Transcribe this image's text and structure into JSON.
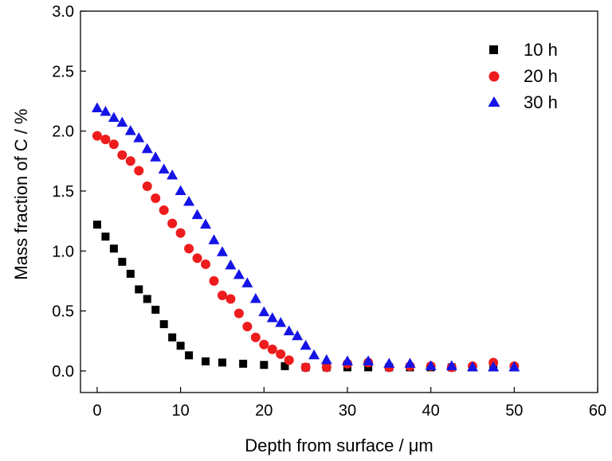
{
  "chart_data": {
    "type": "scatter",
    "title": "",
    "xlabel": "Depth from surface / μm",
    "ylabel": "Mass fraction of C / %",
    "xlim": [
      -2,
      60
    ],
    "ylim": [
      -0.18,
      3.0
    ],
    "xticks": [
      0,
      10,
      20,
      30,
      40,
      50,
      60
    ],
    "yticks": [
      0.0,
      0.5,
      1.0,
      1.5,
      2.0,
      2.5,
      3.0
    ],
    "xtick_labels": [
      "0",
      "10",
      "20",
      "30",
      "40",
      "50",
      "60"
    ],
    "ytick_labels": [
      "0.0",
      "0.5",
      "1.0",
      "1.5",
      "2.0",
      "2.5",
      "3.0"
    ],
    "grid": false,
    "legend_position": "top-right",
    "series": [
      {
        "name": "10 h",
        "marker": "square",
        "color": "#000000",
        "x": [
          0,
          1,
          2,
          3,
          4,
          5,
          6,
          7,
          8,
          9,
          10,
          11,
          13,
          15,
          17.5,
          20,
          22.5,
          25,
          27.5,
          30,
          32.5,
          35,
          37.5,
          40,
          42.5,
          45,
          47.5,
          50
        ],
        "y": [
          1.22,
          1.12,
          1.02,
          0.91,
          0.81,
          0.68,
          0.6,
          0.51,
          0.39,
          0.28,
          0.21,
          0.13,
          0.08,
          0.07,
          0.06,
          0.05,
          0.04,
          0.03,
          0.03,
          0.03,
          0.03,
          0.03,
          0.03,
          0.03,
          0.03,
          0.03,
          0.03,
          0.03
        ]
      },
      {
        "name": "20 h",
        "marker": "circle",
        "color": "#ee1c1c",
        "x": [
          0,
          1,
          2,
          3,
          4,
          5,
          6,
          7,
          8,
          9,
          10,
          11,
          12,
          13,
          14,
          15,
          16,
          17,
          18,
          19,
          20,
          21,
          22,
          23,
          25,
          27.5,
          30,
          32.5,
          35,
          37.5,
          40,
          42.5,
          45,
          47.5,
          50
        ],
        "y": [
          1.96,
          1.93,
          1.89,
          1.8,
          1.75,
          1.67,
          1.54,
          1.44,
          1.34,
          1.23,
          1.15,
          1.02,
          0.94,
          0.89,
          0.75,
          0.63,
          0.6,
          0.48,
          0.37,
          0.28,
          0.22,
          0.18,
          0.14,
          0.09,
          0.03,
          0.03,
          0.06,
          0.07,
          0.03,
          0.04,
          0.04,
          0.03,
          0.04,
          0.07,
          0.04
        ]
      },
      {
        "name": "30 h",
        "marker": "triangle",
        "color": "#1414e6",
        "x": [
          0,
          1,
          2,
          3,
          4,
          5,
          6,
          7,
          8,
          9,
          10,
          11,
          12,
          13,
          14,
          15,
          16,
          17,
          18,
          19,
          20,
          21,
          22,
          23,
          24,
          25,
          26,
          27.5,
          30,
          32.5,
          35,
          37.5,
          40,
          42.5,
          45,
          47.5,
          50
        ],
        "y": [
          2.19,
          2.16,
          2.11,
          2.07,
          2.0,
          1.94,
          1.85,
          1.78,
          1.68,
          1.63,
          1.5,
          1.41,
          1.3,
          1.22,
          1.09,
          0.99,
          0.88,
          0.8,
          0.73,
          0.6,
          0.49,
          0.44,
          0.4,
          0.33,
          0.29,
          0.21,
          0.13,
          0.09,
          0.08,
          0.08,
          0.06,
          0.06,
          0.04,
          0.04,
          0.03,
          0.03,
          0.03
        ]
      }
    ]
  }
}
